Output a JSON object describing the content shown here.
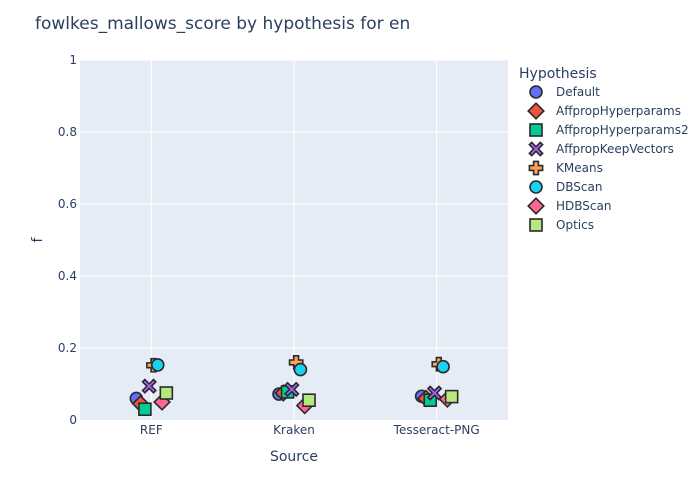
{
  "chart_data": {
    "type": "scatter",
    "title": "fowlkes_mallows_score by hypothesis for en",
    "xlabel": "Source",
    "ylabel": "f",
    "categories": [
      "REF",
      "Kraken",
      "Tesseract-PNG"
    ],
    "ylim": [
      0,
      1
    ],
    "yticks": [
      "0",
      "0.2",
      "0.4",
      "0.6",
      "0.8",
      "1"
    ],
    "grid": true,
    "legend_title": "Hypothesis",
    "legend_position": "right",
    "series": [
      {
        "name": "Default",
        "symbol": "circle",
        "color": "#636efa",
        "values": [
          0.06,
          0.072,
          0.066
        ]
      },
      {
        "name": "AffpropHyperparams",
        "symbol": "diamond",
        "color": "#EF553B",
        "values": [
          0.045,
          0.075,
          0.06
        ]
      },
      {
        "name": "AffpropHyperparams2",
        "symbol": "square",
        "color": "#00cc96",
        "values": [
          0.03,
          0.078,
          0.055
        ]
      },
      {
        "name": "AffpropKeepVectors",
        "symbol": "x",
        "color": "#ab63fa",
        "values": [
          0.094,
          0.085,
          0.075
        ]
      },
      {
        "name": "KMeans",
        "symbol": "cross",
        "color": "#FFA15A",
        "values": [
          0.152,
          0.16,
          0.155
        ]
      },
      {
        "name": "DBScan",
        "symbol": "circle",
        "color": "#19d3f3",
        "values": [
          0.153,
          0.14,
          0.148
        ]
      },
      {
        "name": "HDBScan",
        "symbol": "diamond",
        "color": "#FF6692",
        "values": [
          0.05,
          0.04,
          0.058
        ]
      },
      {
        "name": "Optics",
        "symbol": "square",
        "color": "#B6E880",
        "values": [
          0.075,
          0.055,
          0.065
        ]
      }
    ]
  }
}
